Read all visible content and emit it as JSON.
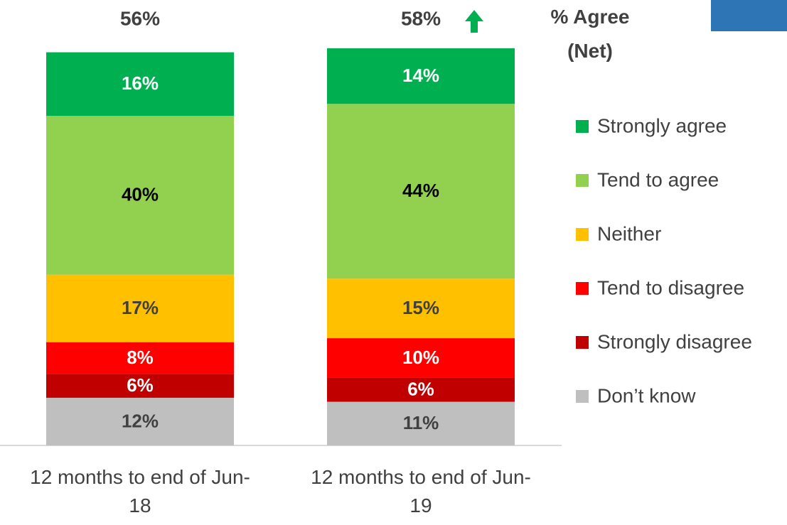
{
  "chart_data": {
    "type": "stacked_bar",
    "title": "% Agree (Net)",
    "categories": [
      "12 months to end of Jun-18",
      "12 months to end of Jun-19"
    ],
    "ylim": [
      0,
      100
    ],
    "net": {
      "values": [
        56,
        58
      ],
      "value_labels": [
        "56%",
        "58%"
      ]
    },
    "series": [
      {
        "name": "Don’t know",
        "color": "#bfbfbf",
        "label_color": "#404040",
        "values": [
          12,
          11
        ],
        "value_labels": [
          "12%",
          "11%"
        ]
      },
      {
        "name": "Strongly disagree",
        "color": "#c00000",
        "label_color": "#ffffff",
        "values": [
          6,
          6
        ],
        "value_labels": [
          "6%",
          "6%"
        ]
      },
      {
        "name": "Tend to disagree",
        "color": "#ff0000",
        "label_color": "#ffffff",
        "values": [
          8,
          10
        ],
        "value_labels": [
          "8%",
          "10%"
        ]
      },
      {
        "name": "Neither",
        "color": "#ffc000",
        "label_color": "#404040",
        "values": [
          17,
          15
        ],
        "value_labels": [
          "17%",
          "15%"
        ]
      },
      {
        "name": "Tend to agree",
        "color": "#92d050",
        "label_color": "#000000",
        "values": [
          40,
          44
        ],
        "value_labels": [
          "40%",
          "44%"
        ]
      },
      {
        "name": "Strongly agree",
        "color": "#00b050",
        "label_color": "#ffffff",
        "values": [
          16,
          14
        ],
        "value_labels": [
          "16%",
          "14%"
        ]
      }
    ]
  }
}
